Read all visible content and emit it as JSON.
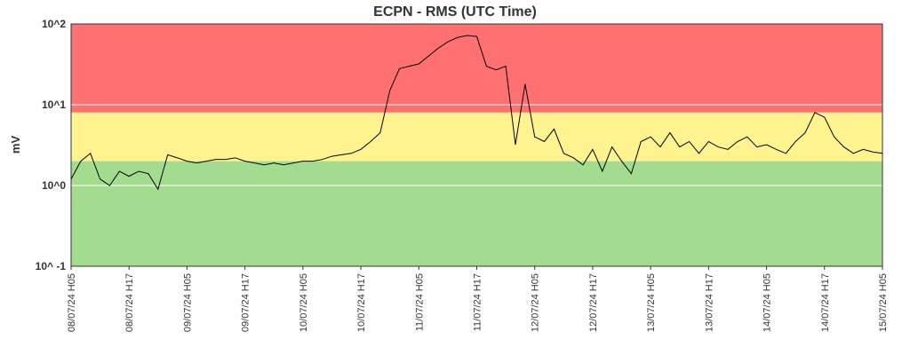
{
  "chart_data": {
    "type": "line",
    "title": "ECPN - RMS (UTC Time)",
    "y_label": "mV",
    "y_scale": "log",
    "ylim": [
      0.1,
      100
    ],
    "yticks": [
      {
        "value": 100,
        "label": "10^2"
      },
      {
        "value": 10,
        "label": "10^1"
      },
      {
        "value": 1,
        "label": "10^0"
      },
      {
        "value": 0.1,
        "label": "10^ -1"
      }
    ],
    "grid": true,
    "bands": [
      {
        "from": 8,
        "to": 100,
        "color": "#ff7070"
      },
      {
        "from": 2,
        "to": 8,
        "color": "#fff38f"
      },
      {
        "from": 0.1,
        "to": 2,
        "color": "#a3dc8e"
      }
    ],
    "line_color": "#000000",
    "xlim": [
      "2024-07-08T05:00",
      "2024-07-15T05:00"
    ],
    "xticks": [
      {
        "value": "2024-07-08T05:00",
        "label": "08/07/24 H05"
      },
      {
        "value": "2024-07-08T17:00",
        "label": "08/07/24 H17"
      },
      {
        "value": "2024-07-09T05:00",
        "label": "09/07/24 H05"
      },
      {
        "value": "2024-07-09T17:00",
        "label": "09/07/24 H17"
      },
      {
        "value": "2024-07-10T05:00",
        "label": "10/07/24 H05"
      },
      {
        "value": "2024-07-10T17:00",
        "label": "10/07/24 H17"
      },
      {
        "value": "2024-07-11T05:00",
        "label": "11/07/24 H05"
      },
      {
        "value": "2024-07-11T17:00",
        "label": "11/07/24 H17"
      },
      {
        "value": "2024-07-12T05:00",
        "label": "12/07/24 H05"
      },
      {
        "value": "2024-07-12T17:00",
        "label": "12/07/24 H17"
      },
      {
        "value": "2024-07-13T05:00",
        "label": "13/07/24 H05"
      },
      {
        "value": "2024-07-13T17:00",
        "label": "13/07/24 H17"
      },
      {
        "value": "2024-07-14T05:00",
        "label": "14/07/24 H05"
      },
      {
        "value": "2024-07-14T17:00",
        "label": "14/07/24 H17"
      },
      {
        "value": "2024-07-15T05:00",
        "label": "15/07/24 H05"
      }
    ],
    "x": [
      "2024-07-08T05:00",
      "2024-07-08T07:00",
      "2024-07-08T09:00",
      "2024-07-08T11:00",
      "2024-07-08T13:00",
      "2024-07-08T15:00",
      "2024-07-08T17:00",
      "2024-07-08T19:00",
      "2024-07-08T21:00",
      "2024-07-08T23:00",
      "2024-07-09T01:00",
      "2024-07-09T03:00",
      "2024-07-09T05:00",
      "2024-07-09T07:00",
      "2024-07-09T09:00",
      "2024-07-09T11:00",
      "2024-07-09T13:00",
      "2024-07-09T15:00",
      "2024-07-09T17:00",
      "2024-07-09T19:00",
      "2024-07-09T21:00",
      "2024-07-09T23:00",
      "2024-07-10T01:00",
      "2024-07-10T03:00",
      "2024-07-10T05:00",
      "2024-07-10T07:00",
      "2024-07-10T09:00",
      "2024-07-10T11:00",
      "2024-07-10T13:00",
      "2024-07-10T15:00",
      "2024-07-10T17:00",
      "2024-07-10T19:00",
      "2024-07-10T21:00",
      "2024-07-10T23:00",
      "2024-07-11T01:00",
      "2024-07-11T03:00",
      "2024-07-11T05:00",
      "2024-07-11T07:00",
      "2024-07-11T09:00",
      "2024-07-11T11:00",
      "2024-07-11T13:00",
      "2024-07-11T15:00",
      "2024-07-11T17:00",
      "2024-07-11T19:00",
      "2024-07-11T21:00",
      "2024-07-11T23:00",
      "2024-07-12T01:00",
      "2024-07-12T03:00",
      "2024-07-12T05:00",
      "2024-07-12T07:00",
      "2024-07-12T09:00",
      "2024-07-12T11:00",
      "2024-07-12T13:00",
      "2024-07-12T15:00",
      "2024-07-12T17:00",
      "2024-07-12T19:00",
      "2024-07-12T21:00",
      "2024-07-12T23:00",
      "2024-07-13T01:00",
      "2024-07-13T03:00",
      "2024-07-13T05:00",
      "2024-07-13T07:00",
      "2024-07-13T09:00",
      "2024-07-13T11:00",
      "2024-07-13T13:00",
      "2024-07-13T15:00",
      "2024-07-13T17:00",
      "2024-07-13T19:00",
      "2024-07-13T21:00",
      "2024-07-13T23:00",
      "2024-07-14T01:00",
      "2024-07-14T03:00",
      "2024-07-14T05:00",
      "2024-07-14T07:00",
      "2024-07-14T09:00",
      "2024-07-14T11:00",
      "2024-07-14T13:00",
      "2024-07-14T15:00",
      "2024-07-14T17:00",
      "2024-07-14T19:00",
      "2024-07-14T21:00",
      "2024-07-14T23:00",
      "2024-07-15T01:00",
      "2024-07-15T03:00",
      "2024-07-15T05:00"
    ],
    "values": [
      1.2,
      2.0,
      2.5,
      1.2,
      1.0,
      1.5,
      1.3,
      1.5,
      1.4,
      0.9,
      2.4,
      2.2,
      2.0,
      1.9,
      2.0,
      2.1,
      2.1,
      2.2,
      2.0,
      1.9,
      1.8,
      1.9,
      1.8,
      1.9,
      2.0,
      2.0,
      2.1,
      2.3,
      2.4,
      2.5,
      2.8,
      3.5,
      4.5,
      15,
      28,
      30,
      32,
      40,
      50,
      60,
      68,
      72,
      70,
      30,
      27,
      30,
      3.2,
      18,
      4,
      3.5,
      5,
      2.5,
      2.2,
      1.8,
      2.8,
      1.5,
      3,
      2,
      1.4,
      3.5,
      4,
      3,
      4.5,
      3,
      3.5,
      2.5,
      3.5,
      3,
      2.8,
      3.5,
      4,
      3,
      3.2,
      2.8,
      2.5,
      3.5,
      4.5,
      8,
      7,
      4,
      3,
      2.5,
      2.8,
      2.6,
      2.5
    ]
  }
}
